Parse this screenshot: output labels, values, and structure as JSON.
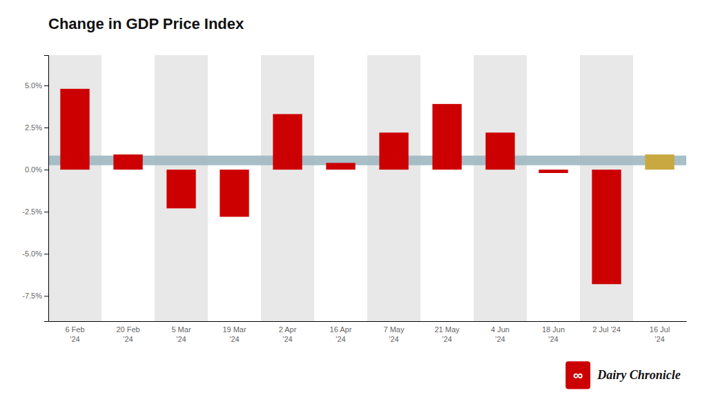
{
  "chart_data": {
    "type": "bar",
    "title": "Change in GDP Price Index",
    "categories": [
      "6 Feb\n'24",
      "20 Feb\n'24",
      "5 Mar\n'24",
      "19 Mar\n'24",
      "2 Apr\n'24",
      "16 Apr\n'24",
      "7 May\n'24",
      "21 May\n'24",
      "4 Jun\n'24",
      "18 Jun\n'24",
      "2 Jul '24",
      "16 Jul\n'24"
    ],
    "values": [
      4.8,
      0.9,
      -2.3,
      -2.8,
      3.3,
      0.4,
      2.2,
      3.9,
      2.2,
      -0.2,
      -6.8,
      0.9
    ],
    "colors": [
      "#cc0000",
      "#cc0000",
      "#cc0000",
      "#cc0000",
      "#cc0000",
      "#cc0000",
      "#cc0000",
      "#cc0000",
      "#cc0000",
      "#cc0000",
      "#cc0000",
      "#c8a840"
    ],
    "reference_line": {
      "y": 0.55,
      "color": "#9fb8c2"
    },
    "ylim": [
      -9.0,
      6.8
    ],
    "yticks": [
      {
        "value": -7.5,
        "label": "-7.5%"
      },
      {
        "value": -5.0,
        "label": "-5.0%"
      },
      {
        "value": -2.5,
        "label": "-2.5%"
      },
      {
        "value": 0.0,
        "label": "0.0%"
      },
      {
        "value": 2.5,
        "label": "2.5%"
      },
      {
        "value": 5.0,
        "label": "5.0%"
      }
    ],
    "grid": false,
    "annotations": [
      "∞",
      "Dairy Chronicle"
    ]
  }
}
